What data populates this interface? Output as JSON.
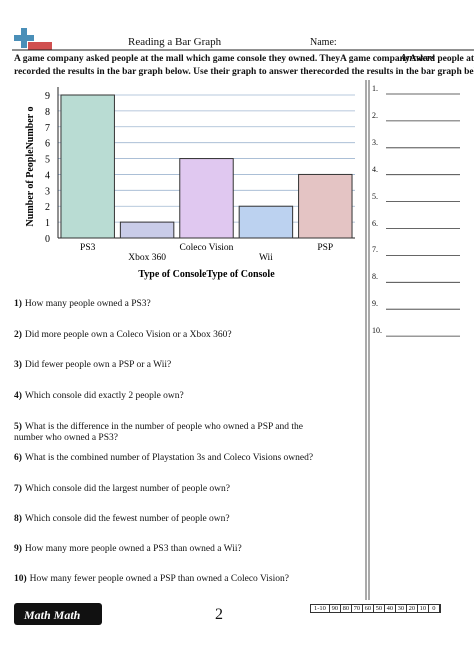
{
  "header": {
    "title": "Reading a Bar Graph",
    "name_label": "Name:"
  },
  "instructions": [
    "A game company asked people at the mall which game console they owned. TheyA game companyAsked people at the",
    "recorded the results in the bar graph below. Use their graph to answer therecorded the results in the bar graph below"
  ],
  "answers": {
    "title": "Answers",
    "items": [
      "1.",
      "2.",
      "3.",
      "4.",
      "5.",
      "6.",
      "7.",
      "8.",
      "9.",
      "10."
    ]
  },
  "chart_data": {
    "type": "bar",
    "x_label": "Type of ConsoleType of Console",
    "y_label": "Number of PeopleNumber o",
    "categories": [
      "PS3",
      "Xbox 360",
      "Coleco Vision",
      "Wii",
      "PSP"
    ],
    "values": [
      9,
      1,
      5,
      2,
      4
    ],
    "colors": [
      "#b9dcd3",
      "#c9cce8",
      "#e0c8f0",
      "#bcd2f0",
      "#e4c4c4"
    ],
    "ylim": [
      0,
      9
    ],
    "yticks": [
      0,
      1,
      2,
      3,
      4,
      5,
      6,
      7,
      8,
      9
    ],
    "grid": true
  },
  "questions": [
    {
      "number": "1)",
      "text": "How many people owned a PS3?"
    },
    {
      "number": "2)",
      "text": "Did more people own a Coleco Vision or a Xbox 360?"
    },
    {
      "number": "3)",
      "text": "Did fewer people own a PSP or a Wii?"
    },
    {
      "number": "4)",
      "text": "Which console did exactly 2 people own?"
    },
    {
      "number": "5)",
      "text": "What is the difference in the number of people who owned a PSP and the number who owned a PS3?"
    },
    {
      "number": "6)",
      "text": "What is the combined number of Playstation 3s and Coleco Visions owned?"
    },
    {
      "number": "7)",
      "text": "Which console did the largest number of people own?"
    },
    {
      "number": "8)",
      "text": "Which console did the fewest number of people own?"
    },
    {
      "number": "9)",
      "text": "How many more people owned a PS3 than owned a Wii?"
    },
    {
      "number": "10)",
      "text": "How many fewer people owned a PSP than owned a Coleco Vision?"
    }
  ],
  "footer": {
    "logo": "Math Math",
    "page": "2",
    "score_label": "1-10",
    "scores": [
      90,
      80,
      70,
      60,
      50,
      40,
      30,
      20,
      10,
      0
    ]
  }
}
